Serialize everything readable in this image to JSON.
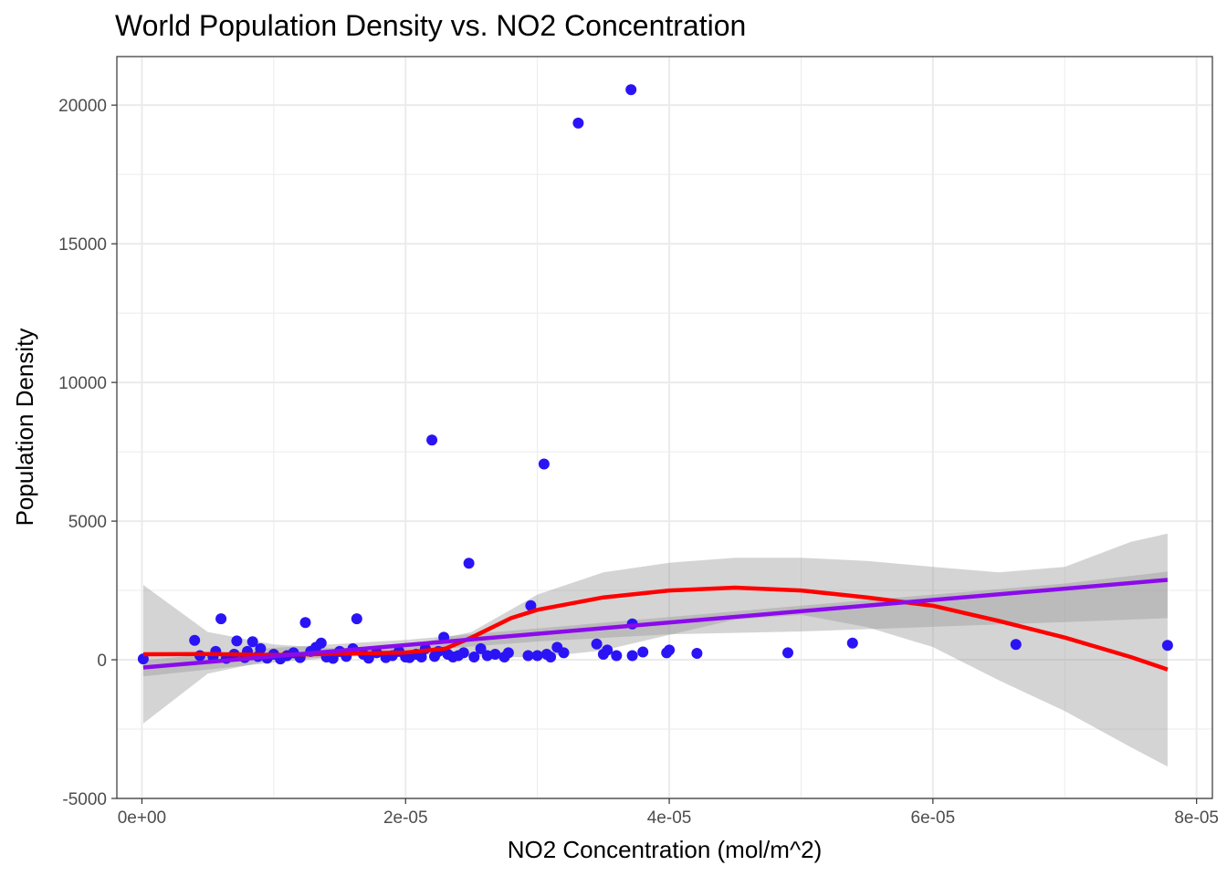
{
  "chart_data": {
    "type": "scatter",
    "title": "World Population Density vs. NO2 Concentration",
    "xlabel": "NO2 Concentration (mol/m^2)",
    "ylabel": "Population Density",
    "xlim": [
      -1.9e-06,
      8.12e-05
    ],
    "ylim": [
      -5000,
      21750
    ],
    "x_ticks": [
      0,
      2e-05,
      4e-05,
      6e-05,
      8e-05
    ],
    "x_tick_labels": [
      "0e+00",
      "2e-05",
      "4e-05",
      "6e-05",
      "8e-05"
    ],
    "y_ticks": [
      -5000,
      0,
      5000,
      10000,
      15000,
      20000
    ],
    "y_tick_labels": [
      "-5000",
      "0",
      "5000",
      "10000",
      "15000",
      "20000"
    ],
    "grid": true,
    "colors": {
      "points": "#2A14F5",
      "loess_line": "#FF0000",
      "linear_line": "#8B0BEB",
      "ribbon": "#999999",
      "grid": "#EBEBEB",
      "panel_border": "#333333"
    },
    "series": [
      {
        "type": "points",
        "points": [
          [
            1e-07,
            30
          ],
          [
            4e-06,
            700
          ],
          [
            4.4e-06,
            150
          ],
          [
            5.4e-06,
            100
          ],
          [
            5.6e-06,
            300
          ],
          [
            6e-06,
            1480
          ],
          [
            6.4e-06,
            50
          ],
          [
            7e-06,
            200
          ],
          [
            7.2e-06,
            680
          ],
          [
            7.8e-06,
            80
          ],
          [
            8e-06,
            300
          ],
          [
            8.4e-06,
            650
          ],
          [
            8.8e-06,
            120
          ],
          [
            9e-06,
            400
          ],
          [
            9.5e-06,
            60
          ],
          [
            1e-05,
            200
          ],
          [
            1.05e-05,
            30
          ],
          [
            1.1e-05,
            150
          ],
          [
            1.15e-05,
            250
          ],
          [
            1.2e-05,
            80
          ],
          [
            1.24e-05,
            1340
          ],
          [
            1.28e-05,
            300
          ],
          [
            1.32e-05,
            450
          ],
          [
            1.36e-05,
            600
          ],
          [
            1.4e-05,
            100
          ],
          [
            1.45e-05,
            50
          ],
          [
            1.5e-05,
            300
          ],
          [
            1.55e-05,
            120
          ],
          [
            1.6e-05,
            400
          ],
          [
            1.63e-05,
            1480
          ],
          [
            1.68e-05,
            200
          ],
          [
            1.72e-05,
            60
          ],
          [
            1.78e-05,
            250
          ],
          [
            1.85e-05,
            80
          ],
          [
            1.9e-05,
            150
          ],
          [
            1.95e-05,
            300
          ],
          [
            2e-05,
            100
          ],
          [
            2.03e-05,
            80
          ],
          [
            2.08e-05,
            200
          ],
          [
            2.12e-05,
            100
          ],
          [
            2.15e-05,
            400
          ],
          [
            2.2e-05,
            7920
          ],
          [
            2.22e-05,
            120
          ],
          [
            2.25e-05,
            300
          ],
          [
            2.29e-05,
            810
          ],
          [
            2.32e-05,
            200
          ],
          [
            2.36e-05,
            100
          ],
          [
            2.4e-05,
            150
          ],
          [
            2.44e-05,
            250
          ],
          [
            2.48e-05,
            3480
          ],
          [
            2.52e-05,
            100
          ],
          [
            2.57e-05,
            400
          ],
          [
            2.62e-05,
            150
          ],
          [
            2.68e-05,
            200
          ],
          [
            2.75e-05,
            100
          ],
          [
            2.78e-05,
            250
          ],
          [
            2.93e-05,
            150
          ],
          [
            2.95e-05,
            1950
          ],
          [
            3e-05,
            150
          ],
          [
            3.05e-05,
            7060
          ],
          [
            3.07e-05,
            200
          ],
          [
            3.1e-05,
            100
          ],
          [
            3.15e-05,
            450
          ],
          [
            3.2e-05,
            250
          ],
          [
            3.31e-05,
            19350
          ],
          [
            3.45e-05,
            570
          ],
          [
            3.5e-05,
            200
          ],
          [
            3.53e-05,
            350
          ],
          [
            3.6e-05,
            150
          ],
          [
            3.71e-05,
            20560
          ],
          [
            3.72e-05,
            150
          ],
          [
            3.72e-05,
            1290
          ],
          [
            3.8e-05,
            280
          ],
          [
            3.98e-05,
            250
          ],
          [
            4e-05,
            350
          ],
          [
            4.21e-05,
            230
          ],
          [
            4.9e-05,
            250
          ],
          [
            5.39e-05,
            600
          ],
          [
            6.63e-05,
            550
          ],
          [
            7.78e-05,
            520
          ]
        ]
      },
      {
        "type": "ribbon",
        "name": "loess",
        "x": [
          1e-07,
          5e-06,
          1e-05,
          1.5e-05,
          2e-05,
          2.5e-05,
          3e-05,
          3.5e-05,
          4e-05,
          4.5e-05,
          5e-05,
          5.5e-05,
          6e-05,
          6.5e-05,
          7e-05,
          7.5e-05,
          7.78e-05
        ],
        "upper": [
          2700,
          1000,
          550,
          400,
          500,
          1000,
          2350,
          3150,
          3500,
          3680,
          3680,
          3560,
          3350,
          3150,
          3350,
          4250,
          4550
        ],
        "lower": [
          -2300,
          -500,
          0,
          100,
          200,
          120,
          80,
          340,
          900,
          1450,
          1620,
          1180,
          460,
          -740,
          -1850,
          -3150,
          -3850
        ]
      },
      {
        "type": "ribbon",
        "name": "linear",
        "x": [
          1e-07,
          1e-05,
          2e-05,
          3e-05,
          4e-05,
          5e-05,
          6e-05,
          7e-05,
          7.78e-05
        ],
        "upper": [
          -20,
          430,
          720,
          1130,
          1540,
          1950,
          2350,
          2750,
          3180
        ],
        "lower": [
          -600,
          -100,
          290,
          660,
          920,
          1020,
          1190,
          1360,
          1500
        ]
      },
      {
        "type": "line",
        "name": "loess",
        "color": "#FF0000",
        "points": [
          [
            1e-07,
            200
          ],
          [
            5e-06,
            210
          ],
          [
            1e-05,
            170
          ],
          [
            1.5e-05,
            220
          ],
          [
            2e-05,
            260
          ],
          [
            2.3e-05,
            400
          ],
          [
            2.5e-05,
            800
          ],
          [
            2.8e-05,
            1500
          ],
          [
            3e-05,
            1800
          ],
          [
            3.5e-05,
            2250
          ],
          [
            4e-05,
            2500
          ],
          [
            4.5e-05,
            2600
          ],
          [
            5e-05,
            2500
          ],
          [
            5.5e-05,
            2250
          ],
          [
            6e-05,
            1950
          ],
          [
            6.5e-05,
            1400
          ],
          [
            7e-05,
            800
          ],
          [
            7.5e-05,
            100
          ],
          [
            7.78e-05,
            -350
          ]
        ]
      },
      {
        "type": "line",
        "name": "linear",
        "color": "#8B0BEB",
        "points": [
          [
            1e-07,
            -280
          ],
          [
            7.78e-05,
            2880
          ]
        ]
      }
    ]
  }
}
